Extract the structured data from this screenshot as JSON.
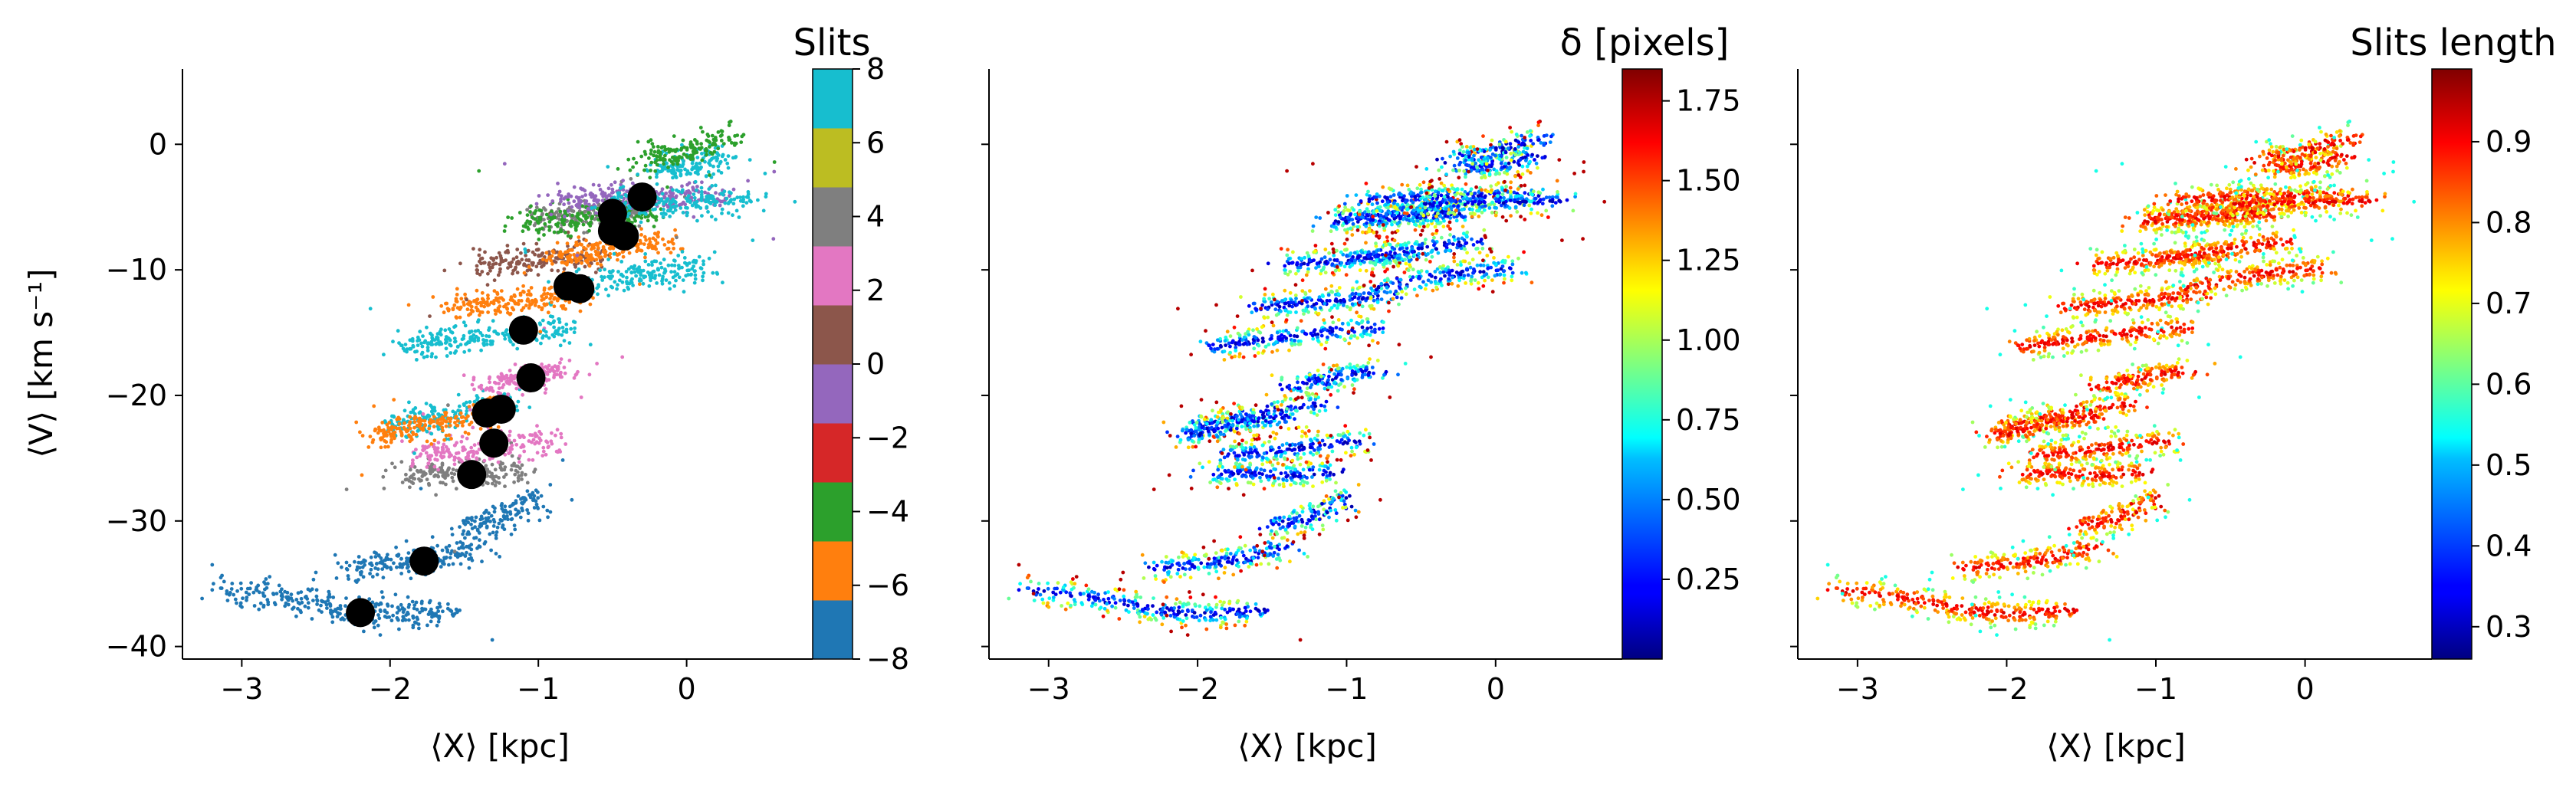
{
  "chart_data": [
    {
      "type": "scatter",
      "panel": "left",
      "xlabel": "⟨X⟩ [kpc]",
      "ylabel": "⟨V⟩ [km s⁻¹]",
      "xlim": [
        -3.4,
        0.85
      ],
      "ylim": [
        -41,
        6
      ],
      "xticks": [
        -3,
        -2,
        -1,
        0
      ],
      "xtick_labels": [
        "−3",
        "−2",
        "−1",
        "0"
      ],
      "yticks": [
        -40,
        -30,
        -20,
        -10,
        0
      ],
      "ytick_labels": [
        "−40",
        "−30",
        "−20",
        "−10",
        "0"
      ],
      "colorbar": {
        "title": "Slits",
        "range": [
          -8,
          8
        ],
        "ticks": [
          -8,
          -6,
          -4,
          -2,
          0,
          2,
          4,
          6,
          8
        ],
        "tick_labels": [
          "−8",
          "−6",
          "−4",
          "−2",
          "0",
          "2",
          "4",
          "6",
          "8"
        ],
        "colors": [
          "#1f77b4",
          "#ff7f0e",
          "#2ca02c",
          "#d62728",
          "#9467bd",
          "#8c564b",
          "#e377c2",
          "#7f7f7f",
          "#bcbd22",
          "#17becf"
        ]
      },
      "color_by": "slit",
      "series": [
        {
          "slit": -7.2,
          "x": [
            -3.1,
            -2.6,
            -2.2,
            -1.9,
            -1.6
          ],
          "y": [
            -35.5,
            -36.3,
            -37.2,
            -37.5,
            -37.0
          ]
        },
        {
          "slit": -7.2,
          "x": [
            -2.3,
            -2.0,
            -1.7,
            -1.4
          ],
          "y": [
            -33.8,
            -33.5,
            -32.9,
            -32.0
          ]
        },
        {
          "slit": -7.2,
          "x": [
            -1.5,
            -1.2,
            -1.0
          ],
          "y": [
            -30.5,
            -29.5,
            -28.0
          ]
        },
        {
          "slit": 4.6,
          "x": [
            -1.9,
            -1.6,
            -1.3,
            -1.1
          ],
          "y": [
            -26.2,
            -26.2,
            -26.4,
            -26.0
          ]
        },
        {
          "slit": 2.4,
          "x": [
            -1.8,
            -1.5,
            -1.2,
            -0.9
          ],
          "y": [
            -24.8,
            -24.5,
            -24.0,
            -23.6
          ]
        },
        {
          "slit": 6.4,
          "x": [
            -2.0,
            -1.7,
            -1.4,
            -1.2
          ],
          "y": [
            -22.5,
            -21.8,
            -21.0,
            -20.6
          ]
        },
        {
          "slit": -5.6,
          "x": [
            -2.1,
            -1.8,
            -1.6,
            -1.4
          ],
          "y": [
            -23.2,
            -22.6,
            -22.0,
            -21.6
          ]
        },
        {
          "slit": 2.4,
          "x": [
            -1.4,
            -1.1,
            -0.8
          ],
          "y": [
            -19.4,
            -18.6,
            -18.0
          ]
        },
        {
          "slit": 6.4,
          "x": [
            -1.9,
            -1.6,
            -1.3,
            -1.0,
            -0.8
          ],
          "y": [
            -16.2,
            -15.6,
            -15.2,
            -14.8,
            -14.5
          ]
        },
        {
          "slit": -5.6,
          "x": [
            -1.6,
            -1.2,
            -0.9,
            -0.7
          ],
          "y": [
            -13.0,
            -12.6,
            -12.2,
            -12.0
          ]
        },
        {
          "slit": 0.8,
          "x": [
            -1.4,
            -1.1,
            -0.8,
            -0.6
          ],
          "y": [
            -9.6,
            -9.3,
            -9.0,
            -8.9
          ]
        },
        {
          "slit": -5.6,
          "x": [
            -0.9,
            -0.6,
            -0.3,
            -0.1
          ],
          "y": [
            -9.0,
            -8.5,
            -8.0,
            -7.6
          ]
        },
        {
          "slit": 7.2,
          "x": [
            -0.8,
            -0.5,
            -0.2,
            0.1
          ],
          "y": [
            -11.5,
            -10.7,
            -10.2,
            -9.8
          ]
        },
        {
          "slit": 4.6,
          "x": [
            -1.0,
            -0.7,
            -0.5,
            -0.3
          ],
          "y": [
            -5.8,
            -5.6,
            -5.4,
            -5.3
          ]
        },
        {
          "slit": -3.4,
          "x": [
            -1.1,
            -0.8,
            -0.5,
            -0.2
          ],
          "y": [
            -6.2,
            -6.0,
            -5.7,
            -5.5
          ]
        },
        {
          "slit": -1.6,
          "x": [
            -0.9,
            -0.5,
            -0.1,
            0.3
          ],
          "y": [
            -4.5,
            -4.2,
            -4.1,
            -4.0
          ]
        },
        {
          "slit": 7.2,
          "x": [
            -0.5,
            -0.1,
            0.2,
            0.4
          ],
          "y": [
            -4.8,
            -4.7,
            -4.6,
            -4.5
          ]
        },
        {
          "slit": 6.4,
          "x": [
            -0.2,
            0.1,
            0.3
          ],
          "y": [
            -2.0,
            -1.5,
            -0.8
          ]
        },
        {
          "slit": -3.4,
          "x": [
            -0.3,
            0.0,
            0.3
          ],
          "y": [
            -1.5,
            -0.5,
            0.5
          ]
        }
      ],
      "markers": {
        "color": "#000000",
        "x": [
          -2.2,
          -1.77,
          -1.45,
          -1.3,
          -1.35,
          -1.25,
          -1.05,
          -1.1,
          -0.8,
          -0.72,
          -0.5,
          -0.5,
          -0.42,
          -0.3
        ],
        "y": [
          -37.3,
          -33.2,
          -26.3,
          -23.8,
          -21.4,
          -21.1,
          -18.6,
          -14.8,
          -11.3,
          -11.5,
          -5.5,
          -6.9,
          -7.3,
          -4.2
        ]
      }
    },
    {
      "type": "scatter",
      "panel": "middle",
      "xlabel": "⟨X⟩ [kpc]",
      "ylabel": "",
      "xlim": [
        -3.4,
        0.85
      ],
      "ylim": [
        -41,
        6
      ],
      "xticks": [
        -3,
        -2,
        -1,
        0
      ],
      "xtick_labels": [
        "−3",
        "−2",
        "−1",
        "0"
      ],
      "colorbar": {
        "title": "δ [pixels]",
        "colormap": "jet",
        "range": [
          0.0,
          1.85
        ],
        "ticks": [
          0.25,
          0.5,
          0.75,
          1.0,
          1.25,
          1.5,
          1.75
        ],
        "tick_labels": [
          "0.25",
          "0.50",
          "0.75",
          "1.00",
          "1.25",
          "1.50",
          "1.75"
        ]
      },
      "color_by": "delta",
      "series_from": "left panel point cloud",
      "band_core_value": 0.08,
      "band_edge_value": 1.75
    },
    {
      "type": "scatter",
      "panel": "right",
      "xlabel": "⟨X⟩ [kpc]",
      "ylabel": "",
      "xlim": [
        -3.4,
        0.85
      ],
      "ylim": [
        -41,
        6
      ],
      "xticks": [
        -3,
        -2,
        -1,
        0
      ],
      "xtick_labels": [
        "−3",
        "−2",
        "−1",
        "0"
      ],
      "colorbar": {
        "title": "Slits length",
        "colormap": "jet",
        "range": [
          0.26,
          0.99
        ],
        "ticks": [
          0.3,
          0.4,
          0.5,
          0.6,
          0.7,
          0.8,
          0.9
        ],
        "tick_labels": [
          "0.3",
          "0.4",
          "0.5",
          "0.6",
          "0.7",
          "0.8",
          "0.9"
        ]
      },
      "color_by": "slit_length",
      "series_from": "left panel point cloud",
      "band_core_value": 0.93,
      "band_edge_value": 0.55
    }
  ]
}
